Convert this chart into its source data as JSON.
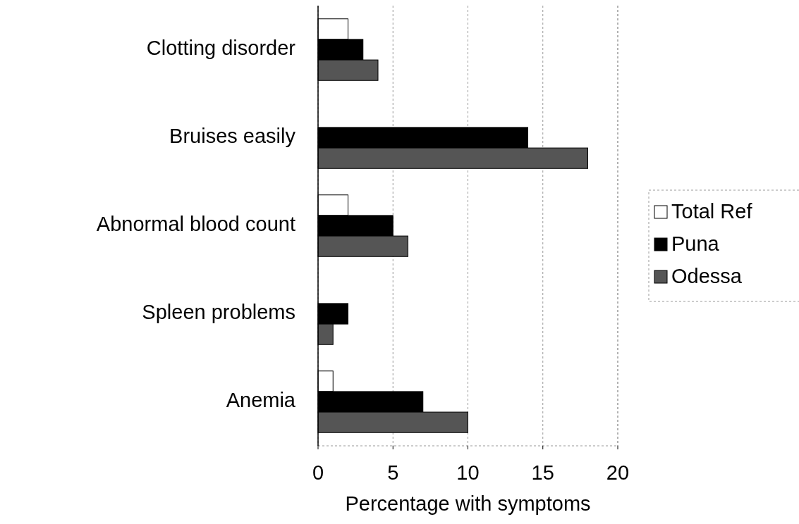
{
  "chart_data": {
    "type": "bar",
    "orientation": "horizontal",
    "xlabel": "Percentage with symptoms",
    "categories": [
      "Clotting disorder",
      "Bruises easily",
      "Abnormal blood count",
      "Spleen problems",
      "Anemia"
    ],
    "series": [
      {
        "name": "Total Ref",
        "color": "#ffffff",
        "values": [
          2,
          0,
          2,
          0,
          1
        ]
      },
      {
        "name": "Puna",
        "color": "#000000",
        "values": [
          3,
          14,
          5,
          2,
          7
        ]
      },
      {
        "name": "Odessa",
        "color": "#555555",
        "values": [
          4,
          18,
          6,
          1,
          10
        ]
      }
    ],
    "xlim": [
      0,
      20
    ],
    "xticks": [
      0,
      5,
      10,
      15,
      20
    ],
    "grid": "x",
    "legend": "right"
  }
}
